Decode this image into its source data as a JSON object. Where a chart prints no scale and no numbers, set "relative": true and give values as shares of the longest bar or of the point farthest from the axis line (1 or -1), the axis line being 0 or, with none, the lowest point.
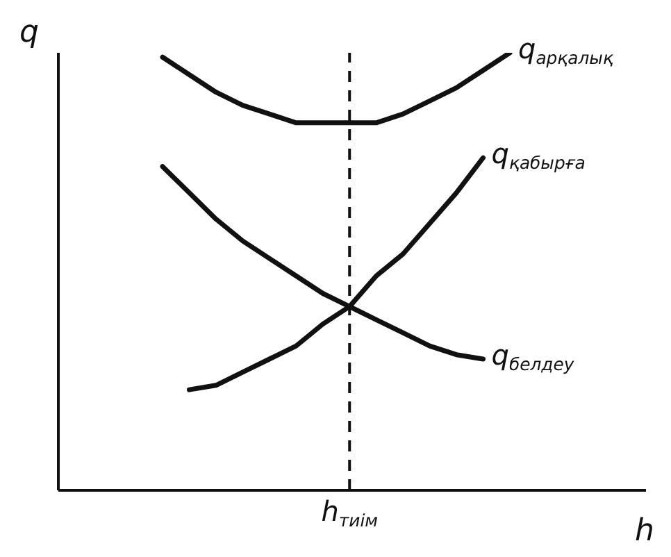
{
  "chart_data": {
    "type": "line",
    "xlabel": "h",
    "ylabel": "q",
    "relative": true,
    "grid": false,
    "legend": false,
    "categories": [
      null,
      null,
      null,
      null,
      null,
      null,
      null,
      null,
      null,
      null,
      null,
      null,
      null,
      null
    ],
    "series": [
      {
        "name": "q$_{арқалық}$",
        "color": "#111111",
        "values": [
          0.99,
          0.95,
          0.91,
          0.88,
          0.86,
          0.84,
          0.84,
          0.84,
          0.84,
          0.86,
          0.89,
          0.92,
          0.96,
          1.0
        ]
      },
      {
        "name": "q$_{қабырға}$",
        "color": "#111111",
        "values": [
          null,
          0.23,
          0.24,
          0.27,
          0.3,
          0.33,
          0.38,
          0.42,
          0.49,
          0.54,
          0.61,
          0.68,
          0.76,
          null
        ]
      },
      {
        "name": "q$_{белдеу}$",
        "color": "#111111",
        "values": [
          0.74,
          0.68,
          0.62,
          0.57,
          0.53,
          0.49,
          0.45,
          0.42,
          0.39,
          0.36,
          0.33,
          0.31,
          0.3,
          null
        ]
      }
    ],
    "annotations": [
      "h$_{тиім}$"
    ]
  }
}
